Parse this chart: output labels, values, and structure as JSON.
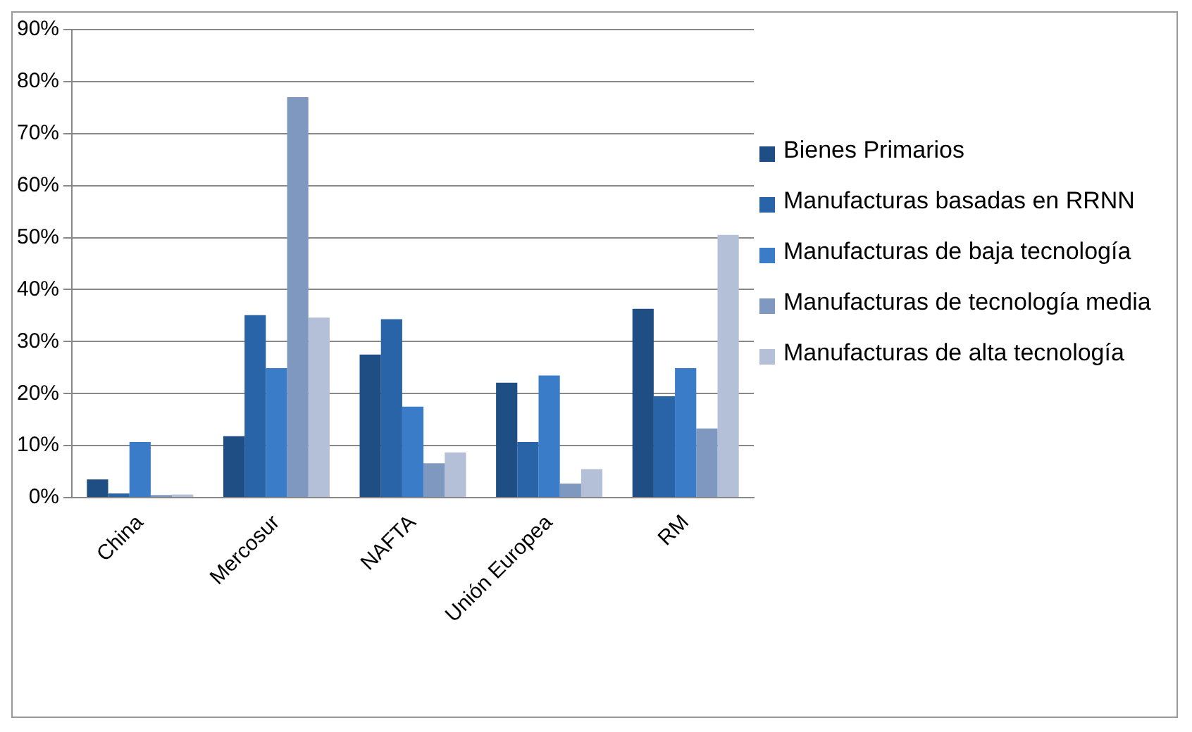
{
  "chart_data": {
    "type": "bar",
    "categories": [
      "China",
      "Mercosur",
      "NAFTA",
      "Unión Europea",
      "RM"
    ],
    "series": [
      {
        "name": "Bienes Primarios",
        "color": "#1f4e85",
        "values": [
          3.5,
          11.8,
          27.5,
          22.1,
          36.3
        ]
      },
      {
        "name": "Manufacturas basadas en RRNN",
        "color": "#2a64a8",
        "values": [
          0.8,
          35.1,
          34.3,
          10.7,
          19.5
        ]
      },
      {
        "name": "Manufacturas de baja tecnología",
        "color": "#3a7cc8",
        "values": [
          10.7,
          24.9,
          17.5,
          23.5,
          24.9
        ]
      },
      {
        "name": "Manufacturas de tecnología media",
        "color": "#7f98c0",
        "values": [
          0.5,
          77.0,
          6.6,
          2.7,
          13.3
        ]
      },
      {
        "name": "Manufacturas de alta tecnología",
        "color": "#b4c0d8",
        "values": [
          0.6,
          34.6,
          8.7,
          5.5,
          50.5
        ]
      }
    ],
    "ylim": [
      0,
      90
    ],
    "yticks": [
      {
        "value": 0,
        "label": "0%"
      },
      {
        "value": 10,
        "label": "10%"
      },
      {
        "value": 20,
        "label": "20%"
      },
      {
        "value": 30,
        "label": "30%"
      },
      {
        "value": 40,
        "label": "40%"
      },
      {
        "value": 50,
        "label": "50%"
      },
      {
        "value": 60,
        "label": "60%"
      },
      {
        "value": 70,
        "label": "70%"
      },
      {
        "value": 80,
        "label": "80%"
      },
      {
        "value": 90,
        "label": "90%"
      }
    ],
    "grid": "y",
    "legend": "right"
  }
}
